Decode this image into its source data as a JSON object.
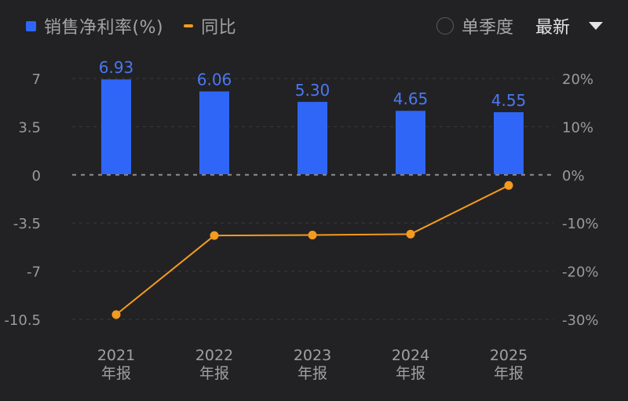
{
  "legend": {
    "bar_label": "销售净利率(%)",
    "line_label": "同比",
    "bar_color": "#2f66f7",
    "line_color": "#f49a1f"
  },
  "controls": {
    "single_quarter_label": "单季度",
    "period_selected": "最新",
    "dropdown_icon": "caret-down-icon"
  },
  "chart_data": {
    "type": "bar",
    "title": "",
    "categories": [
      "2021年报",
      "2022年报",
      "2023年报",
      "2024年报",
      "2025年报"
    ],
    "category_lines": [
      [
        "2021",
        "年报"
      ],
      [
        "2022",
        "年报"
      ],
      [
        "2023",
        "年报"
      ],
      [
        "2024",
        "年报"
      ],
      [
        "2025",
        "年报"
      ]
    ],
    "series": [
      {
        "name": "销售净利率(%)",
        "type": "bar",
        "axis": "left",
        "color": "#2f66f7",
        "values": [
          6.93,
          6.06,
          5.3,
          4.65,
          4.55
        ],
        "labels": [
          "6.93",
          "6.06",
          "5.30",
          "4.65",
          "4.55"
        ]
      },
      {
        "name": "同比",
        "type": "line",
        "axis": "right",
        "color": "#f49a1f",
        "values": [
          -29.0,
          -12.6,
          -12.5,
          -12.3,
          -2.2
        ]
      }
    ],
    "left_axis": {
      "ticks": [
        7,
        3.5,
        0,
        -3.5,
        -7,
        -10.5
      ],
      "tick_labels": [
        "7",
        "3.5",
        "0",
        "-3.5",
        "-7",
        "-10.5"
      ],
      "range": [
        -10.5,
        7
      ]
    },
    "right_axis": {
      "ticks": [
        20,
        10,
        0,
        -10,
        -20,
        -30
      ],
      "tick_labels": [
        "20%",
        "10%",
        "0%",
        "-10%",
        "-20%",
        "-30%"
      ],
      "range": [
        -30,
        20
      ]
    },
    "grid": true,
    "legend_position": "top-left",
    "xlabel": "",
    "ylabel": ""
  }
}
